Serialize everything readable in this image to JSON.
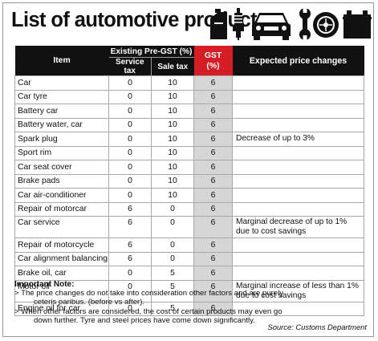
{
  "title": "List of automotive products",
  "icons": [
    "jerry-can-icon",
    "spark-plug-icon",
    "car-front-icon",
    "wrench-icon",
    "tyre-icon",
    "battery-icon"
  ],
  "colors": {
    "header_bg": "#111111",
    "gst_header_bg": "#d51d26",
    "gst_column_bg": "#d6d6d6"
  },
  "table": {
    "headers": {
      "item": "Item",
      "group": "Existing Pre-GST (%)",
      "service_tax": "Service tax",
      "sale_tax": "Sale tax",
      "gst_line1": "GST",
      "gst_line2": "(%)",
      "expected": "Expected price changes"
    },
    "rows": [
      {
        "item": "Car",
        "service_tax": "0",
        "sale_tax": "10",
        "gst": "6",
        "expected": ""
      },
      {
        "item": "Car tyre",
        "service_tax": "0",
        "sale_tax": "10",
        "gst": "6",
        "expected": ""
      },
      {
        "item": "Battery car",
        "service_tax": "0",
        "sale_tax": "10",
        "gst": "6",
        "expected": ""
      },
      {
        "item": "Battery water, car",
        "service_tax": "0",
        "sale_tax": "10",
        "gst": "6",
        "expected": ""
      },
      {
        "item": "Spark plug",
        "service_tax": "0",
        "sale_tax": "10",
        "gst": "6",
        "expected": "Decrease of up to 3%"
      },
      {
        "item": "Sport rim",
        "service_tax": "0",
        "sale_tax": "10",
        "gst": "6",
        "expected": ""
      },
      {
        "item": "Car seat cover",
        "service_tax": "0",
        "sale_tax": "10",
        "gst": "6",
        "expected": ""
      },
      {
        "item": "Brake pads",
        "service_tax": "0",
        "sale_tax": "10",
        "gst": "6",
        "expected": ""
      },
      {
        "item": "Car air-conditioner",
        "service_tax": "0",
        "sale_tax": "10",
        "gst": "6",
        "expected": ""
      },
      {
        "item": "Repair of motorcar",
        "service_tax": "6",
        "sale_tax": "0",
        "gst": "6",
        "expected": ""
      },
      {
        "item": "Car service",
        "service_tax": "6",
        "sale_tax": "0",
        "gst": "6",
        "expected": "Marginal decrease of up to 1% due to cost savings"
      },
      {
        "item": "Repair of motorcycle",
        "service_tax": "6",
        "sale_tax": "0",
        "gst": "6",
        "expected": ""
      },
      {
        "item": "Car alignment balancing",
        "service_tax": "6",
        "sale_tax": "0",
        "gst": "6",
        "expected": ""
      },
      {
        "item": "Brake oil, car",
        "service_tax": "0",
        "sale_tax": "5",
        "gst": "6",
        "expected": ""
      },
      {
        "item": "Motor oil",
        "service_tax": "0",
        "sale_tax": "5",
        "gst": "6",
        "expected": "Marginal increase of less than 1% due to cost savings"
      },
      {
        "item": "Engine oil for car",
        "service_tax": "0",
        "sale_tax": "5",
        "gst": "6",
        "expected": ""
      }
    ]
  },
  "note": {
    "heading": "Important Note:",
    "line1": "> The price changes do not take into consideration other factors and are purely",
    "line1b": "ceteris  paribus. (before vs after).",
    "line2": "> When other factors are considered, the cost of certain products may even go",
    "line2b": "down further. Tyre and steel prices have come down significantly."
  },
  "source": "Source: Customs Department"
}
